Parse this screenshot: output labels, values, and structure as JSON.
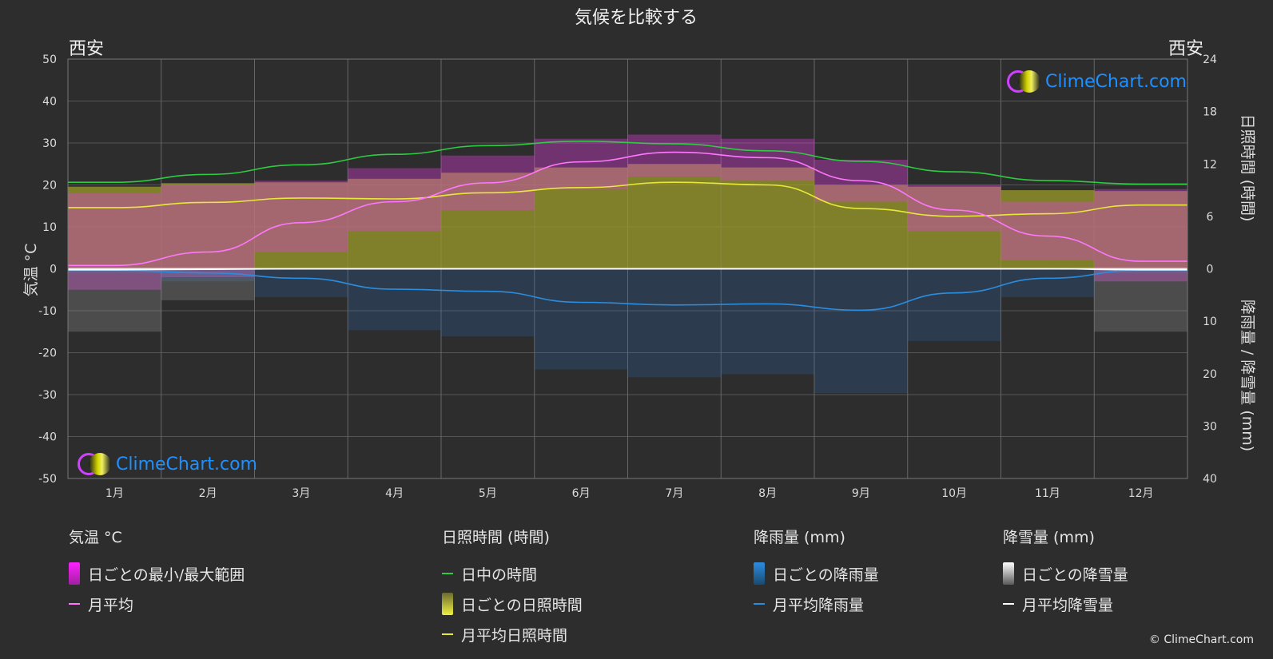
{
  "chart_data": {
    "type": "line",
    "title": "気候を比較する",
    "location_left": "西安",
    "location_right": "西安",
    "ylabel_left": "気温 °C",
    "ylabel_right_top": "日照時間 (時間)",
    "ylabel_right_bottom": "降雨量 / 降雪量 (mm)",
    "categories": [
      "1月",
      "2月",
      "3月",
      "4月",
      "5月",
      "6月",
      "7月",
      "8月",
      "9月",
      "10月",
      "11月",
      "12月"
    ],
    "y_left_ticks": [
      50,
      40,
      30,
      20,
      10,
      0,
      -10,
      -20,
      -30,
      -40,
      -50
    ],
    "y_right_sun_ticks": [
      24,
      18,
      12,
      6,
      0
    ],
    "y_right_precip_ticks": [
      10,
      20,
      30,
      40
    ],
    "ylim_temp": [
      -50,
      50
    ],
    "ylim_sun": [
      0,
      24
    ],
    "ylim_precip": [
      0,
      40
    ],
    "grid": true,
    "series": [
      {
        "name": "日中の時間",
        "unit": "h",
        "color": "#2ecc40",
        "values": [
          9.9,
          10.8,
          11.9,
          13.1,
          14.1,
          14.6,
          14.3,
          13.5,
          12.3,
          11.1,
          10.1,
          9.7
        ]
      },
      {
        "name": "月平均日照時間",
        "unit": "h",
        "color": "#e8e83a",
        "values": [
          7.0,
          7.6,
          8.1,
          8.0,
          8.7,
          9.3,
          9.9,
          9.6,
          6.9,
          6.0,
          6.3,
          7.3
        ]
      },
      {
        "name": "月平均",
        "unit": "°C",
        "color": "#ff77ff",
        "values": [
          0.8,
          4.0,
          11.0,
          16.0,
          20.5,
          25.5,
          27.8,
          26.5,
          21.0,
          14.0,
          7.8,
          1.8
        ]
      },
      {
        "name": "月平均降雨量",
        "unit": "mm",
        "color": "#2b8de0",
        "values": [
          0.3,
          0.8,
          1.8,
          3.9,
          4.3,
          6.4,
          6.9,
          6.7,
          7.9,
          4.6,
          1.8,
          0.3
        ]
      },
      {
        "name": "月平均降雪量",
        "unit": "mm",
        "color": "#ffffff",
        "values": [
          0.2,
          0.1,
          0,
          0,
          0,
          0,
          0,
          0,
          0,
          0,
          0,
          0.2
        ]
      }
    ],
    "daily_range_temp": {
      "min": [
        -5,
        -2,
        4,
        9,
        14,
        19,
        22,
        21,
        16,
        9,
        2,
        -3
      ],
      "max": [
        18,
        20,
        21,
        24,
        27,
        31,
        32,
        31,
        26,
        20,
        16,
        19
      ]
    },
    "daily_sun_hours": [
      9.4,
      9.8,
      9.9,
      10.3,
      11.0,
      11.6,
      12.0,
      11.6,
      9.6,
      9.4,
      9.0,
      8.9
    ],
    "legend_position": "bottom",
    "colors": {
      "background": "#2d2d2d",
      "grid": "#555555",
      "temp_range": "#e040e0",
      "sunshine_fill": "#b8b82a",
      "rain": "#2a73c2",
      "snow": "#aaaaaa"
    }
  },
  "legend": {
    "temp": {
      "title": "気温 °C",
      "items": [
        "日ごとの最小/最大範囲",
        "月平均"
      ]
    },
    "sun": {
      "title": "日照時間 (時間)",
      "items": [
        "日中の時間",
        "日ごとの日照時間",
        "月平均日照時間"
      ]
    },
    "rain": {
      "title": "降雨量 (mm)",
      "items": [
        "日ごとの降雨量",
        "月平均降雨量"
      ]
    },
    "snow": {
      "title": "降雪量 (mm)",
      "items": [
        "日ごとの降雪量",
        "月平均降雪量"
      ]
    }
  },
  "logo_text": "ClimeChart.com",
  "copyright": "© ClimeChart.com"
}
